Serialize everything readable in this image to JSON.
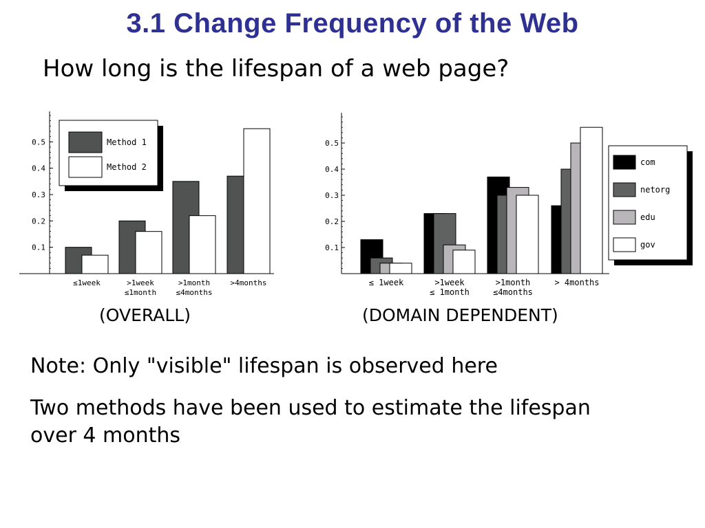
{
  "slide": {
    "title": "3.1 Change Frequency of the Web",
    "question": "How long is the lifespan of a web page?",
    "note": "Note: Only \"visible\" lifespan is observed here",
    "methods_line1": "Two methods have been used to estimate the lifespan",
    "methods_line2": "over 4 months"
  },
  "colors": {
    "title": "#2e3192",
    "method1": "#505352",
    "method2": "#ffffff",
    "com": "#000000",
    "netorg": "#5f6261",
    "edu": "#b8b6b9",
    "gov": "#ffffff"
  },
  "chart_data": [
    {
      "id": "overall",
      "caption": "(OVERALL)",
      "type": "bar",
      "categories": [
        [
          "≤1week"
        ],
        [
          ">1week",
          "≤1month"
        ],
        [
          ">1month",
          "≤4months"
        ],
        [
          ">4months"
        ]
      ],
      "series": [
        {
          "name": "Method 1",
          "values": [
            0.1,
            0.2,
            0.35,
            0.37
          ]
        },
        {
          "name": "Method 2",
          "values": [
            0.07,
            0.16,
            0.22,
            0.55
          ]
        }
      ],
      "yticks": [
        "0.1",
        "0.2",
        "0.3",
        "0.4",
        "0.5"
      ],
      "ylim": [
        0,
        0.6
      ],
      "legend_position": "top-left",
      "grid": false
    },
    {
      "id": "domain",
      "caption": "(DOMAIN DEPENDENT)",
      "type": "bar",
      "categories": [
        [
          "≤ 1week"
        ],
        [
          ">1week",
          "≤ 1month"
        ],
        [
          ">1month",
          "≤4months"
        ],
        [
          "> 4months"
        ]
      ],
      "series": [
        {
          "name": "com",
          "values": [
            0.13,
            0.23,
            0.37,
            0.26
          ]
        },
        {
          "name": "netorg",
          "values": [
            0.06,
            0.23,
            0.3,
            0.4
          ]
        },
        {
          "name": "edu",
          "values": [
            0.04,
            0.11,
            0.33,
            0.5
          ]
        },
        {
          "name": "gov",
          "values": [
            0.04,
            0.09,
            0.3,
            0.56
          ]
        }
      ],
      "yticks": [
        "0.1",
        "0.2",
        "0.3",
        "0.4",
        "0.5"
      ],
      "ylim": [
        0,
        0.6
      ],
      "legend_position": "right",
      "grid": false
    }
  ]
}
